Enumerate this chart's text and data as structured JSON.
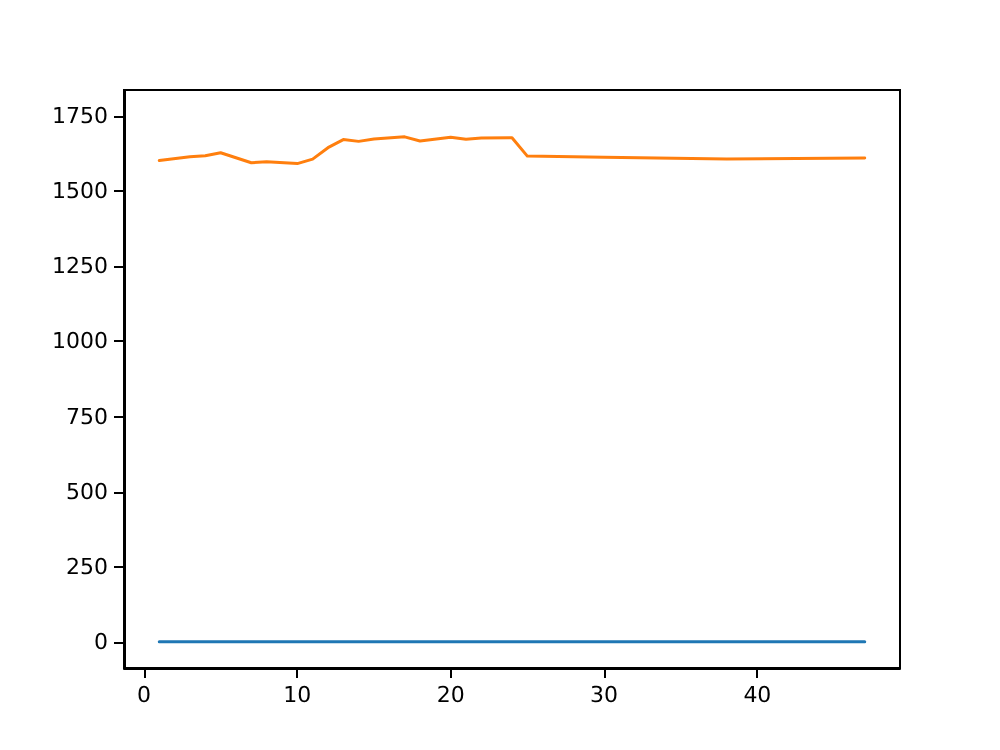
{
  "chart_data": {
    "type": "line",
    "xlim": [
      -1.3,
      49.3
    ],
    "xticks": [
      0,
      10,
      20,
      30,
      40
    ],
    "ylim": [
      -87,
      1837
    ],
    "yticks": [
      0,
      250,
      500,
      750,
      1000,
      1250,
      1500,
      1750
    ],
    "grid": false,
    "marker": "none",
    "line_style": "solid",
    "series": [
      {
        "color": "#1f77b4",
        "x": [
          1,
          47
        ],
        "values": [
          0,
          0
        ]
      },
      {
        "color": "#ff7f0e",
        "x": [
          1,
          3,
          4,
          5,
          7,
          8,
          10,
          11,
          12,
          13,
          14,
          15,
          17,
          18,
          20,
          21,
          22,
          24,
          25,
          30,
          38,
          47
        ],
        "values": [
          1602,
          1615,
          1618,
          1628,
          1595,
          1598,
          1592,
          1607,
          1645,
          1672,
          1666,
          1674,
          1681,
          1667,
          1680,
          1673,
          1677,
          1678,
          1617,
          1613,
          1607,
          1611
        ]
      }
    ]
  }
}
